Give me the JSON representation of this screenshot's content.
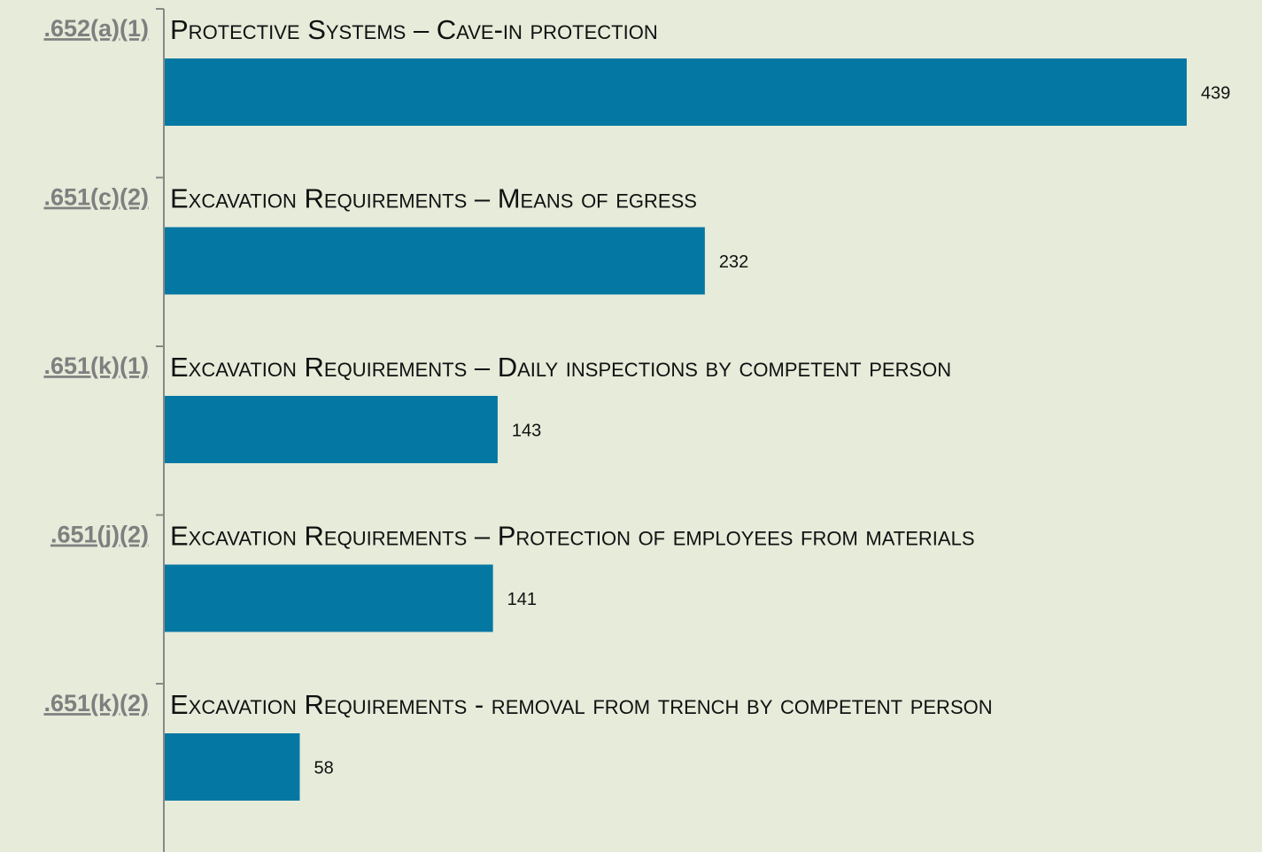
{
  "chart_data": {
    "type": "bar",
    "orientation": "horizontal",
    "categories": [
      ".652(a)(1)",
      ".651(c)(2)",
      ".651(k)(1)",
      ".651(j)(2)",
      ".651(k)(2)"
    ],
    "descriptions": [
      "Protective Systems – Cave-in protection",
      "Excavation Requirements – Means of egress",
      "Excavation Requirements – Daily inspections by competent person",
      "Excavation Requirements – Protection of employees from materials",
      "Excavation Requirements - removal from trench by competent person"
    ],
    "values": [
      439,
      232,
      143,
      141,
      58
    ],
    "color": "#0577a3"
  }
}
